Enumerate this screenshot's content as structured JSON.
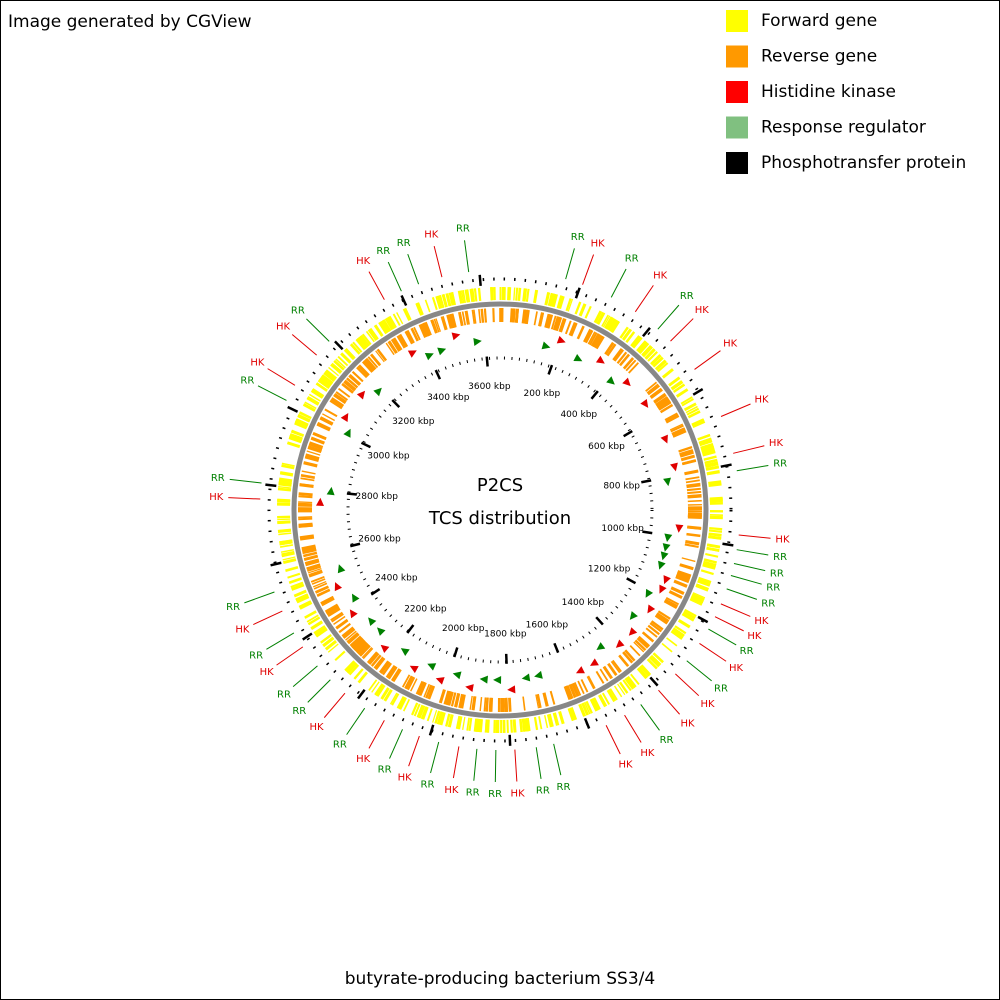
{
  "header": {
    "credit": "Image generated by CGView"
  },
  "legend": [
    {
      "label": "Forward gene",
      "color": "#ffff00"
    },
    {
      "label": "Reverse gene",
      "color": "#ff9900"
    },
    {
      "label": "Histidine kinase",
      "color": "#ff0000"
    },
    {
      "label": "Response regulator",
      "color": "#80c080"
    },
    {
      "label": "Phosphotransfer protein",
      "color": "#000000"
    }
  ],
  "center": {
    "line1": "P2CS",
    "line2": "TCS distribution"
  },
  "footer": {
    "organism": "butyrate-producing bacterium SS3/4"
  },
  "genome_total_kbp": 3650,
  "ticks": [
    {
      "value": 200,
      "label": "200 kbp"
    },
    {
      "value": 400,
      "label": "400 kbp"
    },
    {
      "value": 600,
      "label": "600 kbp"
    },
    {
      "value": 800,
      "label": "800 kbp"
    },
    {
      "value": 1000,
      "label": "1000 kbp"
    },
    {
      "value": 1200,
      "label": "1200 kbp"
    },
    {
      "value": 1400,
      "label": "1400 kbp"
    },
    {
      "value": 1600,
      "label": "1600 kbp"
    },
    {
      "value": 1800,
      "label": "1800 kbp"
    },
    {
      "value": 2000,
      "label": "2000 kbp"
    },
    {
      "value": 2200,
      "label": "2200 kbp"
    },
    {
      "value": 2400,
      "label": "2400 kbp"
    },
    {
      "value": 2600,
      "label": "2600 kbp"
    },
    {
      "value": 2800,
      "label": "2800 kbp"
    },
    {
      "value": 3000,
      "label": "3000 kbp"
    },
    {
      "value": 3200,
      "label": "3200 kbp"
    },
    {
      "value": 3400,
      "label": "3400 kbp"
    },
    {
      "value": 3600,
      "label": "3600 kbp"
    }
  ],
  "feature_colors": {
    "HK": "#e00000",
    "RR": "#008000"
  },
  "features": [
    {
      "label": "RR",
      "kbp": 161
    },
    {
      "label": "HK",
      "kbp": 204
    },
    {
      "label": "RR",
      "kbp": 280
    },
    {
      "label": "HK",
      "kbp": 348
    },
    {
      "label": "RR",
      "kbp": 417
    },
    {
      "label": "HK",
      "kbp": 459
    },
    {
      "label": "HK",
      "kbp": 549
    },
    {
      "label": "HK",
      "kbp": 680
    },
    {
      "label": "HK",
      "kbp": 774
    },
    {
      "label": "RR",
      "kbp": 817
    },
    {
      "label": "HK",
      "kbp": 973
    },
    {
      "label": "RR",
      "kbp": 1009
    },
    {
      "label": "RR",
      "kbp": 1043
    },
    {
      "label": "RR",
      "kbp": 1073
    },
    {
      "label": "RR",
      "kbp": 1107
    },
    {
      "label": "HK",
      "kbp": 1146
    },
    {
      "label": "HK",
      "kbp": 1180
    },
    {
      "label": "RR",
      "kbp": 1214
    },
    {
      "label": "HK",
      "kbp": 1255
    },
    {
      "label": "RR",
      "kbp": 1307
    },
    {
      "label": "HK",
      "kbp": 1349
    },
    {
      "label": "HK",
      "kbp": 1406
    },
    {
      "label": "RR",
      "kbp": 1461
    },
    {
      "label": "HK",
      "kbp": 1508
    },
    {
      "label": "HK",
      "kbp": 1559
    },
    {
      "label": "RR",
      "kbp": 1694
    },
    {
      "label": "RR",
      "kbp": 1737
    },
    {
      "label": "HK",
      "kbp": 1789
    },
    {
      "label": "RR",
      "kbp": 1835
    },
    {
      "label": "RR",
      "kbp": 1881
    },
    {
      "label": "HK",
      "kbp": 1925
    },
    {
      "label": "RR",
      "kbp": 1975
    },
    {
      "label": "HK",
      "kbp": 2024
    },
    {
      "label": "RR",
      "kbp": 2068
    },
    {
      "label": "HK",
      "kbp": 2117
    },
    {
      "label": "RR",
      "kbp": 2173
    },
    {
      "label": "HK",
      "kbp": 2233
    },
    {
      "label": "RR",
      "kbp": 2281
    },
    {
      "label": "RR",
      "kbp": 2327
    },
    {
      "label": "HK",
      "kbp": 2385
    },
    {
      "label": "RR",
      "kbp": 2425
    },
    {
      "label": "HK",
      "kbp": 2485
    },
    {
      "label": "RR",
      "kbp": 2535
    },
    {
      "label": "HK",
      "kbp": 2764
    },
    {
      "label": "RR",
      "kbp": 2803
    },
    {
      "label": "RR",
      "kbp": 3013
    },
    {
      "label": "HK",
      "kbp": 3055
    },
    {
      "label": "HK",
      "kbp": 3145
    },
    {
      "label": "RR",
      "kbp": 3190
    },
    {
      "label": "HK",
      "kbp": 3358
    },
    {
      "label": "RR",
      "kbp": 3404
    },
    {
      "label": "RR",
      "kbp": 3449
    },
    {
      "label": "HK",
      "kbp": 3508
    },
    {
      "label": "RR",
      "kbp": 3574
    }
  ]
}
